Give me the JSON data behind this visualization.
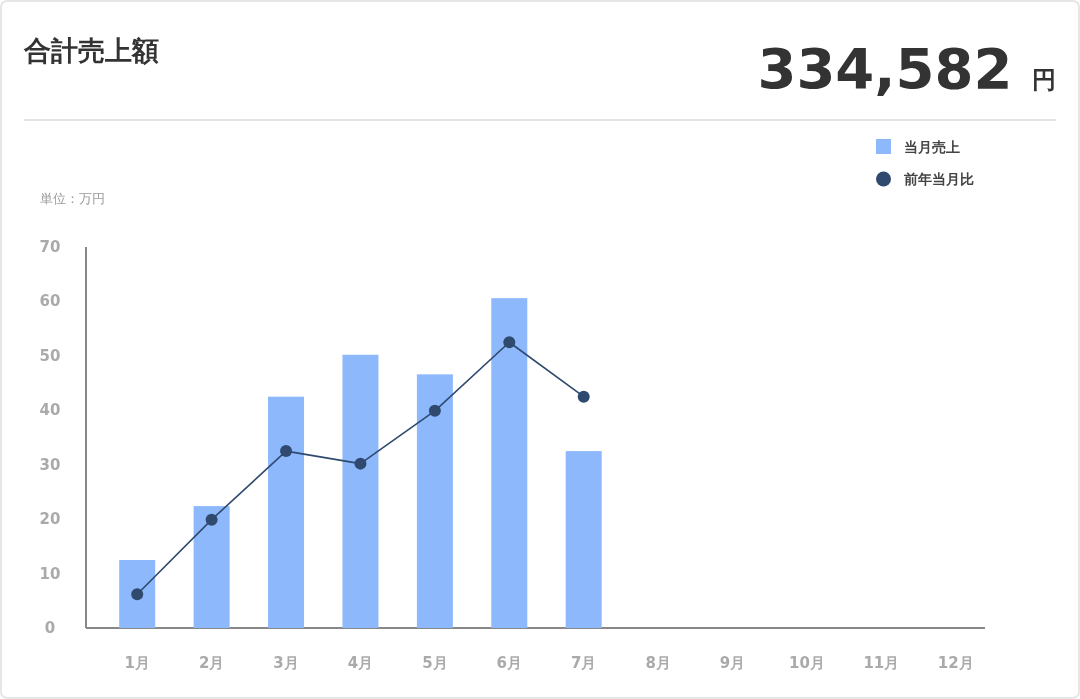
{
  "chart_data": {
    "type": "bar",
    "title": "合計売上額",
    "annotations": [
      "334,582 円"
    ],
    "ylabel": "単位：万円",
    "categories": [
      "1月",
      "2月",
      "3月",
      "4月",
      "5月",
      "6月",
      "7月",
      "8月",
      "9月",
      "10月",
      "11月",
      "12月"
    ],
    "series": [
      {
        "name": "当月売上",
        "type": "bar",
        "color": "#8db8fc",
        "values": [
          12.5,
          22.4,
          42.5,
          50.2,
          46.6,
          60.6,
          32.5,
          null,
          null,
          null,
          null,
          null
        ]
      },
      {
        "name": "前年当月比",
        "type": "line",
        "color": "#2f4a6e",
        "values": [
          6.2,
          19.9,
          32.5,
          30.2,
          39.9,
          52.5,
          42.5,
          null,
          null,
          null,
          null,
          null
        ]
      }
    ],
    "ylim": [
      0,
      70
    ],
    "yticks": [
      0,
      10,
      20,
      30,
      40,
      50,
      60,
      70
    ],
    "grid": false,
    "marker": "circle",
    "legend": "top right"
  }
}
